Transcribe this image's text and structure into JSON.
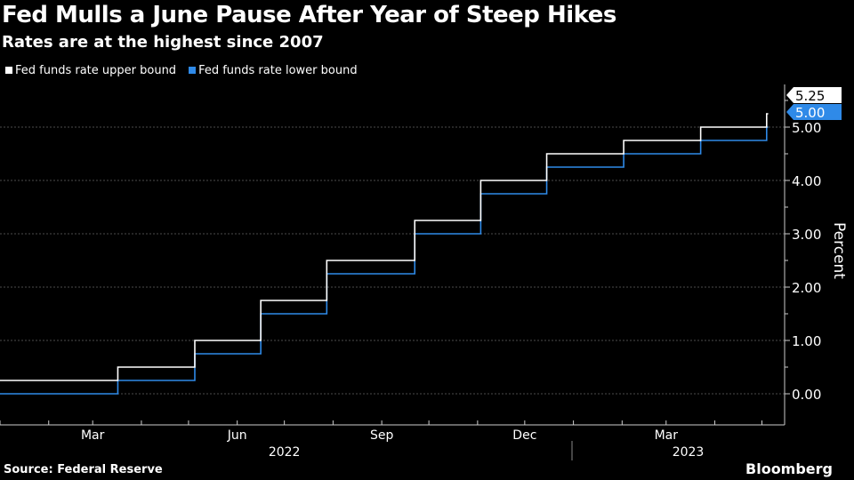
{
  "title": "Fed Mulls a June Pause After Year of Steep Hikes",
  "subtitle": "Rates are at the highest since 2007",
  "source": "Source: Federal Reserve",
  "brand": "Bloomberg",
  "chart_data": {
    "type": "line",
    "step": true,
    "ylabel": "Percent",
    "ylim": [
      -0.5,
      5.8
    ],
    "yticks": [
      "0.00",
      "1.00",
      "2.00",
      "3.00",
      "4.00",
      "5.00"
    ],
    "yticks_values": [
      0,
      1,
      2,
      3,
      4,
      5
    ],
    "xtick_labels": [
      {
        "date": "2022-03-01",
        "label": "Mar"
      },
      {
        "date": "2022-06-01",
        "label": "Jun"
      },
      {
        "date": "2022-09-01",
        "label": "Sep"
      },
      {
        "date": "2022-12-01",
        "label": "Dec"
      },
      {
        "date": "2023-03-01",
        "label": "Mar"
      }
    ],
    "year_labels": [
      {
        "date": "2022-07-01",
        "label": "2022"
      },
      {
        "date": "2023-03-15",
        "label": "2023"
      }
    ],
    "grid": true,
    "legend_position": "top-left",
    "series": [
      {
        "name": "Fed funds rate upper bound",
        "color": "#ffffff",
        "end_label": "5.25",
        "points": [
          [
            "2022-01-01",
            0.25
          ],
          [
            "2022-03-17",
            0.5
          ],
          [
            "2022-05-05",
            1.0
          ],
          [
            "2022-06-16",
            1.75
          ],
          [
            "2022-07-28",
            2.5
          ],
          [
            "2022-09-22",
            3.25
          ],
          [
            "2022-11-03",
            4.0
          ],
          [
            "2022-12-15",
            4.5
          ],
          [
            "2023-02-02",
            4.75
          ],
          [
            "2023-03-23",
            5.0
          ],
          [
            "2023-05-04",
            5.25
          ]
        ]
      },
      {
        "name": "Fed funds rate lower bound",
        "color": "#2f8ae8",
        "end_label": "5.00",
        "points": [
          [
            "2022-01-01",
            0.0
          ],
          [
            "2022-03-17",
            0.25
          ],
          [
            "2022-05-05",
            0.75
          ],
          [
            "2022-06-16",
            1.5
          ],
          [
            "2022-07-28",
            2.25
          ],
          [
            "2022-09-22",
            3.0
          ],
          [
            "2022-11-03",
            3.75
          ],
          [
            "2022-12-15",
            4.25
          ],
          [
            "2023-02-02",
            4.5
          ],
          [
            "2023-03-23",
            4.75
          ],
          [
            "2023-05-04",
            5.0
          ]
        ]
      }
    ],
    "end_date": "2023-05-05"
  }
}
